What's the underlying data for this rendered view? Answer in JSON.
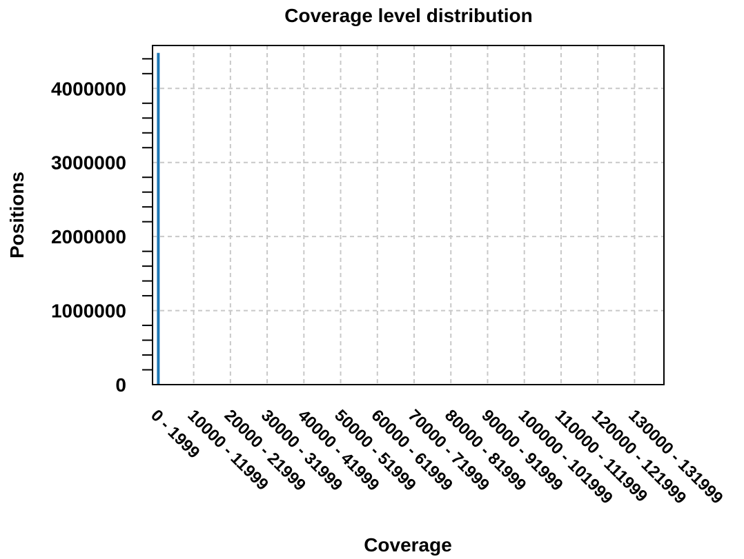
{
  "chart_data": {
    "type": "bar",
    "title": "Coverage level distribution",
    "xlabel": "Coverage",
    "ylabel": "Positions",
    "ylim": [
      0,
      4580000
    ],
    "x_range": [
      -1200,
      138000
    ],
    "y_ticks": [
      "0",
      "1000000",
      "2000000",
      "3000000",
      "4000000"
    ],
    "y_tick_values": [
      0,
      1000000,
      2000000,
      3000000,
      4000000
    ],
    "x_ticks": [
      "0 - 1999",
      "10000 - 11999",
      "20000 - 21999",
      "30000 - 31999",
      "40000 - 41999",
      "50000 - 51999",
      "60000 - 61999",
      "70000 - 71999",
      "80000 - 81999",
      "90000 - 91999",
      "100000 - 101999",
      "110000 - 111999",
      "120000 - 121999",
      "130000 - 131999"
    ],
    "x_tick_values": [
      0,
      10000,
      20000,
      30000,
      40000,
      50000,
      60000,
      70000,
      80000,
      90000,
      100000,
      110000,
      120000,
      130000
    ],
    "bars": [
      {
        "bin": "0 - 1999",
        "x": 0,
        "value": 4480000
      }
    ],
    "grid": true,
    "colors": {
      "bar": "#1f77b4",
      "grid": "#c8c8c8",
      "axis": "#000000"
    }
  }
}
